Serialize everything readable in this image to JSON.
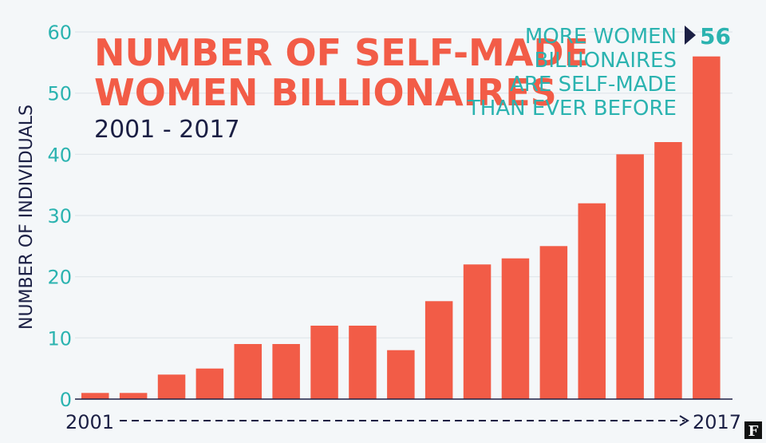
{
  "colors": {
    "bar": "#f25c47",
    "title": "#f25c47",
    "tick": "#2bb3b0",
    "annotation": "#2bb3b0",
    "dark": "#1b1f44",
    "grid": "#dfe6ea",
    "background": "#f4f7f9"
  },
  "chart_data": {
    "type": "bar",
    "title_lines": [
      "NUMBER OF SELF-MADE",
      "WOMEN BILLIONAIRES"
    ],
    "subtitle": "2001 - 2017",
    "ylabel": "NUMBER OF INDIVIDUALS",
    "x_start_label": "2001",
    "x_end_label": "2017",
    "ylim": [
      0,
      60
    ],
    "yticks": [
      "0",
      "10",
      "20",
      "30",
      "40",
      "50",
      "60"
    ],
    "grid": true,
    "values": [
      1,
      1,
      4,
      5,
      9,
      9,
      12,
      12,
      8,
      16,
      22,
      23,
      25,
      32,
      40,
      42,
      56
    ],
    "annotation": {
      "lines": [
        "MORE WOMEN",
        "BILLIONAIRES",
        "ARE SELF-MADE",
        "THAN EVER BEFORE"
      ],
      "value": "56"
    }
  },
  "logo": {
    "letter": "F"
  }
}
